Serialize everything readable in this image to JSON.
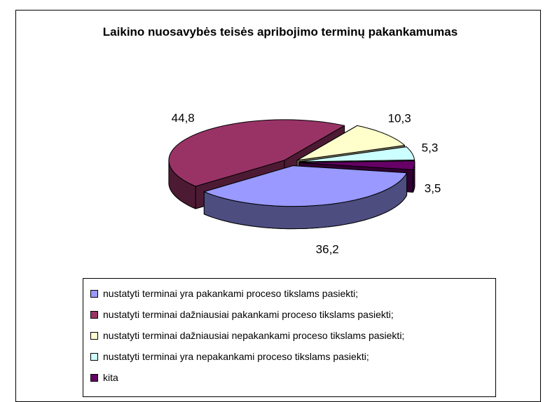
{
  "chart_data": {
    "type": "pie",
    "title": "Laikino nuosavybės teisės apribojimo terminų pakankamumas",
    "categories": [
      "nustatyti terminai yra pakankami proceso tikslams pasiekti;",
      "nustatyti terminai dažniausiai pakankami proceso tikslams pasiekti;",
      "nustatyti terminai dažniausiai nepakankami proceso tikslams pasiekti;",
      "nustatyti terminai yra nepakankami proceso tikslams pasiekti;",
      "kita"
    ],
    "values": [
      36.2,
      44.8,
      10.3,
      5.3,
      3.5
    ],
    "value_labels": [
      "36,2",
      "44,8",
      "10,3",
      "5,3",
      "3,5"
    ],
    "colors": [
      "#9999ff",
      "#993366",
      "#ffffcc",
      "#ccffff",
      "#660066"
    ],
    "legend": "bottom"
  }
}
